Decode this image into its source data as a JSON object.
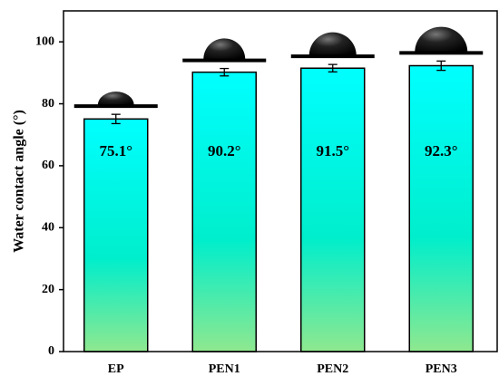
{
  "chart_data": {
    "type": "bar",
    "ylabel": "Water contact angle (°)",
    "categories": [
      "EP",
      "PEN1",
      "PEN2",
      "PEN3"
    ],
    "values": [
      75.1,
      90.2,
      91.5,
      92.3
    ],
    "value_labels": [
      "75.1°",
      "90.2°",
      "91.5°",
      "92.3°"
    ],
    "errors": [
      1.5,
      1.2,
      1.2,
      1.5
    ],
    "gradient": [
      "#00ffff",
      "#00eecc",
      "#8fe88f"
    ],
    "ylim": [
      0,
      110
    ],
    "yticks": [
      0,
      20,
      40,
      60,
      80,
      100
    ],
    "grid": false
  }
}
